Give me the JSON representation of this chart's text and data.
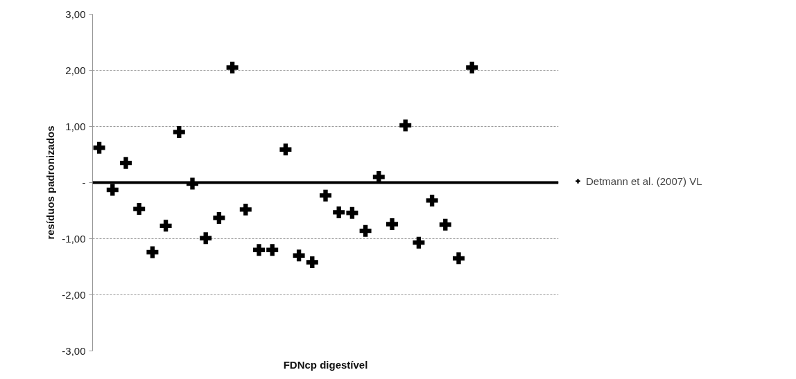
{
  "chart_data": {
    "type": "scatter",
    "xlabel": "FDNcp digestível",
    "ylabel": "resíduos padronizados",
    "categories": [
      null,
      null,
      null,
      null,
      null,
      null,
      null,
      null,
      null,
      null,
      null,
      null,
      null,
      null,
      null,
      null,
      null,
      null,
      null,
      null,
      null,
      null,
      null,
      null,
      null,
      null,
      null,
      null,
      null,
      null,
      null,
      null,
      null,
      null,
      null
    ],
    "series": [
      {
        "name": "Detmann et al. (2007) VL",
        "color": "#000000",
        "values": [
          0.62,
          -0.13,
          0.35,
          -0.47,
          -1.24,
          -0.77,
          0.9,
          -0.02,
          -0.99,
          -0.63,
          2.05,
          -0.48,
          -1.2,
          -1.2,
          0.59,
          -1.3,
          -1.42,
          -0.23,
          -0.53,
          -0.54,
          -0.86,
          0.1,
          -0.74,
          1.02,
          -1.07,
          -0.32,
          -0.75,
          -1.35,
          2.05,
          null,
          null,
          null,
          null,
          null,
          null
        ]
      }
    ],
    "ylim": [
      -3,
      3
    ],
    "yticks": [
      {
        "value": 3,
        "label": "3,00"
      },
      {
        "value": 2,
        "label": "2,00"
      },
      {
        "value": 1,
        "label": "1,00"
      },
      {
        "value": 0,
        "label": "-"
      },
      {
        "value": -1,
        "label": "-1,00"
      },
      {
        "value": -2,
        "label": "-2,00"
      },
      {
        "value": -3,
        "label": "-3,00"
      }
    ],
    "ref_lines": [
      {
        "axis": "y",
        "value": 0,
        "color": "#000000"
      }
    ],
    "grid": "y",
    "legend": "right",
    "marker": "cross",
    "tick_labels": "y"
  }
}
